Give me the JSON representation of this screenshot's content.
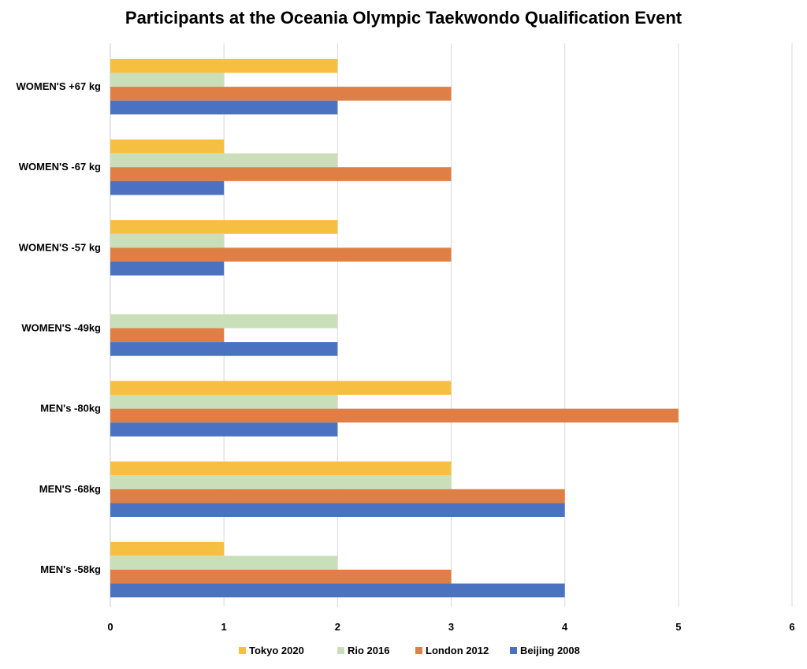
{
  "chart_data": {
    "type": "bar",
    "orientation": "horizontal",
    "title": "Participants at the Oceania Olympic Taekwondo Qualification Event",
    "xlabel": "",
    "ylabel": "",
    "xlim": [
      0,
      6
    ],
    "x_ticks": [
      "0",
      "1",
      "2",
      "3",
      "4",
      "5",
      "6"
    ],
    "grid": "vertical",
    "legend_position": "bottom",
    "categories": [
      "WOMEN'S +67 kg",
      "WOMEN'S -67 kg",
      "WOMEN'S -57 kg",
      "WOMEN'S -49kg",
      "MEN's -80kg",
      "MEN'S -68kg",
      "MEN's -58kg"
    ],
    "series": [
      {
        "name": "Tokyo 2020",
        "color": "#F6BF42",
        "values": [
          2,
          1,
          2,
          0,
          3,
          3,
          1
        ]
      },
      {
        "name": "Rio 2016",
        "color": "#C9DFB9",
        "values": [
          1,
          2,
          1,
          2,
          2,
          3,
          2
        ]
      },
      {
        "name": "London 2012",
        "color": "#E07F45",
        "values": [
          3,
          3,
          3,
          1,
          5,
          4,
          3
        ]
      },
      {
        "name": "Beijing 2008",
        "color": "#4A72C0",
        "values": [
          2,
          1,
          1,
          2,
          2,
          4,
          4
        ]
      }
    ]
  }
}
